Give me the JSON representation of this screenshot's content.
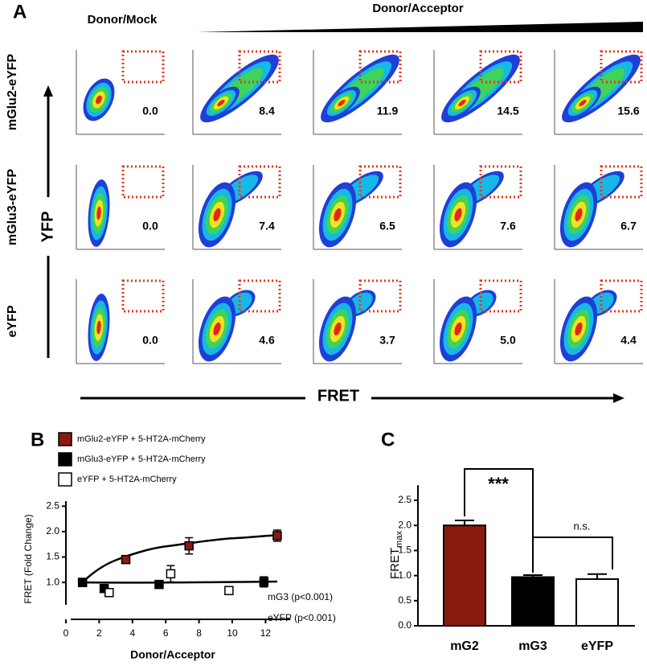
{
  "chart_data": [
    {
      "type": "flow-grid",
      "label": "A",
      "column_titles": [
        "Donor/Mock",
        "Donor/Acceptor"
      ],
      "xlabel": "FRET",
      "ylabel": "YFP",
      "series": [
        {
          "name": "mGlu2-eYFP",
          "values": [
            0,
            8.4,
            11.9,
            14.5,
            15.6
          ],
          "value_labels": [
            "0.0",
            "8.4",
            "11.9",
            "14.5",
            "15.6"
          ]
        },
        {
          "name": "mGlu3-eYFP",
          "values": [
            0,
            7.4,
            6.5,
            7.6,
            6.7
          ],
          "value_labels": [
            "0.0",
            "7.4",
            "6.5",
            "7.6",
            "6.7"
          ]
        },
        {
          "name": "eYFP",
          "values": [
            0,
            4.6,
            3.7,
            5.0,
            4.4
          ],
          "value_labels": [
            "0.0",
            "4.6",
            "3.7",
            "5.0",
            "4.4"
          ]
        }
      ]
    },
    {
      "type": "scatter",
      "label": "B",
      "xlabel": "Donor/Acceptor",
      "ylabel": "FRET (Fold Change)",
      "xlim": [
        0,
        13.5
      ],
      "xticks": [
        0,
        2,
        4,
        6,
        8,
        10,
        12
      ],
      "ylim": [
        0.4,
        2.6
      ],
      "yticks": [
        {
          "value": 1,
          "label": "1.0"
        },
        {
          "value": 1.5,
          "label": "1.5"
        },
        {
          "value": 2,
          "label": "2.0"
        },
        {
          "value": 2.5,
          "label": "2.5"
        }
      ],
      "series": [
        {
          "name": "mGlu2-eYFP + 5-HT2A-mCherry",
          "color": "#8b1a0e",
          "x": [
            1,
            3.6,
            7.4,
            12.7
          ],
          "values": [
            1.0,
            1.45,
            1.72,
            1.92
          ],
          "errors": [
            0.03,
            0.04,
            0.16,
            0.11
          ]
        },
        {
          "name": "mGlu3-eYFP + 5-HT2A-mCherry",
          "color": "#000000",
          "x": [
            1,
            2.3,
            5.6,
            11.9
          ],
          "values": [
            1.0,
            0.88,
            0.96,
            1.01
          ],
          "errors": [
            0.03,
            0.06,
            0.06,
            0.1
          ]
        },
        {
          "name": "eYFP + 5-HT2A-mCherry",
          "color": "#ffffff",
          "x": [
            2.6,
            6.3,
            9.8
          ],
          "values": [
            0.8,
            1.17,
            0.84
          ],
          "errors": [
            0.03,
            0.16,
            0.05
          ]
        }
      ],
      "annotations": [
        "mG3 (p<0.001)",
        "eYFP (p<0.001)"
      ]
    },
    {
      "type": "bar",
      "label": "C",
      "ylabel": "FRET",
      "ylabel_sub": "max",
      "categories": [
        "mG2",
        "mG3",
        "eYFP"
      ],
      "values": [
        2.0,
        0.97,
        0.93
      ],
      "errors": [
        0.1,
        0.04,
        0.1
      ],
      "colors": [
        "#8b1a0e",
        "#000000",
        "#ffffff"
      ],
      "ylim": [
        0,
        2.8
      ],
      "yticks": [
        {
          "value": 0,
          "label": "0.0"
        },
        {
          "value": 0.5,
          "label": "0.5"
        },
        {
          "value": 1,
          "label": "1.0"
        },
        {
          "value": 1.5,
          "label": "1.5"
        },
        {
          "value": 2,
          "label": "2.0"
        },
        {
          "value": 2.5,
          "label": "2.5"
        }
      ],
      "annotations": [
        "***",
        "n.s."
      ]
    }
  ]
}
